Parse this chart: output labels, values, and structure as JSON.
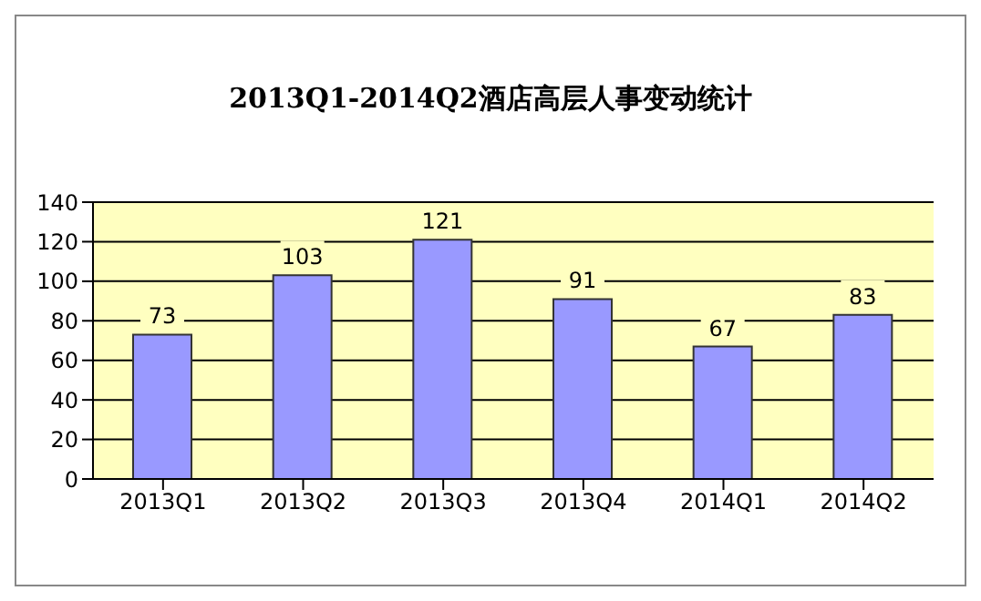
{
  "chart_data": {
    "type": "bar",
    "title": "2013Q1-2014Q2酒店高层人事变动统计",
    "categories": [
      "2013Q1",
      "2013Q2",
      "2013Q3",
      "2013Q4",
      "2014Q1",
      "2014Q2"
    ],
    "values": [
      73,
      103,
      121,
      91,
      67,
      83
    ],
    "color": "#9999ff",
    "ylim": [
      0,
      140
    ],
    "yticks": [
      0,
      20,
      40,
      60,
      80,
      100,
      120,
      140
    ],
    "grid": "y",
    "data_labels": true
  }
}
